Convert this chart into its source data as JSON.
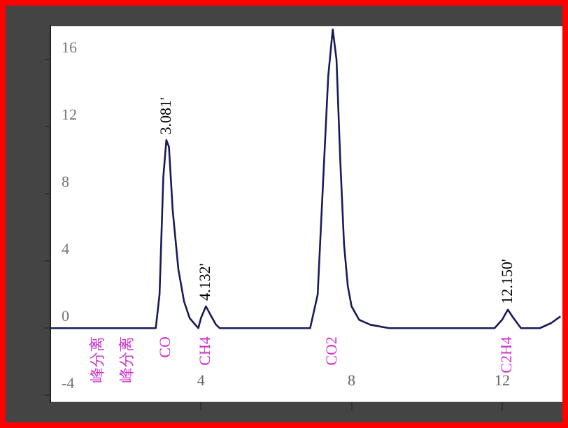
{
  "chart_data": {
    "type": "line",
    "series": [
      {
        "color": "#1a1a5a",
        "x": [
          0,
          2.8,
          2.9,
          3.0,
          3.081,
          3.15,
          3.25,
          3.4,
          3.55,
          3.7,
          3.85,
          3.93,
          4.0,
          4.132,
          4.25,
          4.4,
          4.5,
          6.9,
          7.1,
          7.25,
          7.38,
          7.5,
          7.6,
          7.7,
          7.8,
          7.9,
          8.0,
          8.2,
          8.5,
          9,
          11.8,
          12.0,
          12.15,
          12.3,
          12.5,
          13.0,
          13.3,
          13.55
        ],
        "values": [
          0,
          0,
          2,
          9,
          11.2,
          10.8,
          7,
          3.5,
          1.6,
          0.6,
          0.2,
          0,
          0.6,
          1.3,
          0.8,
          0.2,
          0,
          0,
          2,
          9,
          15,
          17.8,
          16,
          10,
          5,
          2.5,
          1.3,
          0.5,
          0.2,
          0,
          0,
          0.5,
          1.1,
          0.6,
          0,
          0,
          0.3,
          0.7
        ]
      }
    ],
    "xlim": [
      0,
      13.6
    ],
    "xticks": [
      4,
      8,
      12
    ],
    "ylim": [
      -4.4,
      18
    ],
    "yticks": [
      -4,
      0,
      4,
      8,
      12,
      16
    ],
    "grid": false,
    "legend": false,
    "marker": "none",
    "line_style": "solid",
    "annotations": [
      {
        "text": "3.081'",
        "x": 3.081,
        "y": 11.2
      },
      {
        "text": "4.132'",
        "x": 4.132,
        "y": 1.3
      },
      {
        "text": "12.150'",
        "x": 12.15,
        "y": 1.1
      },
      "峰分离",
      "峰分离",
      "CO",
      "CH4",
      "CO2",
      "C2H4"
    ]
  }
}
